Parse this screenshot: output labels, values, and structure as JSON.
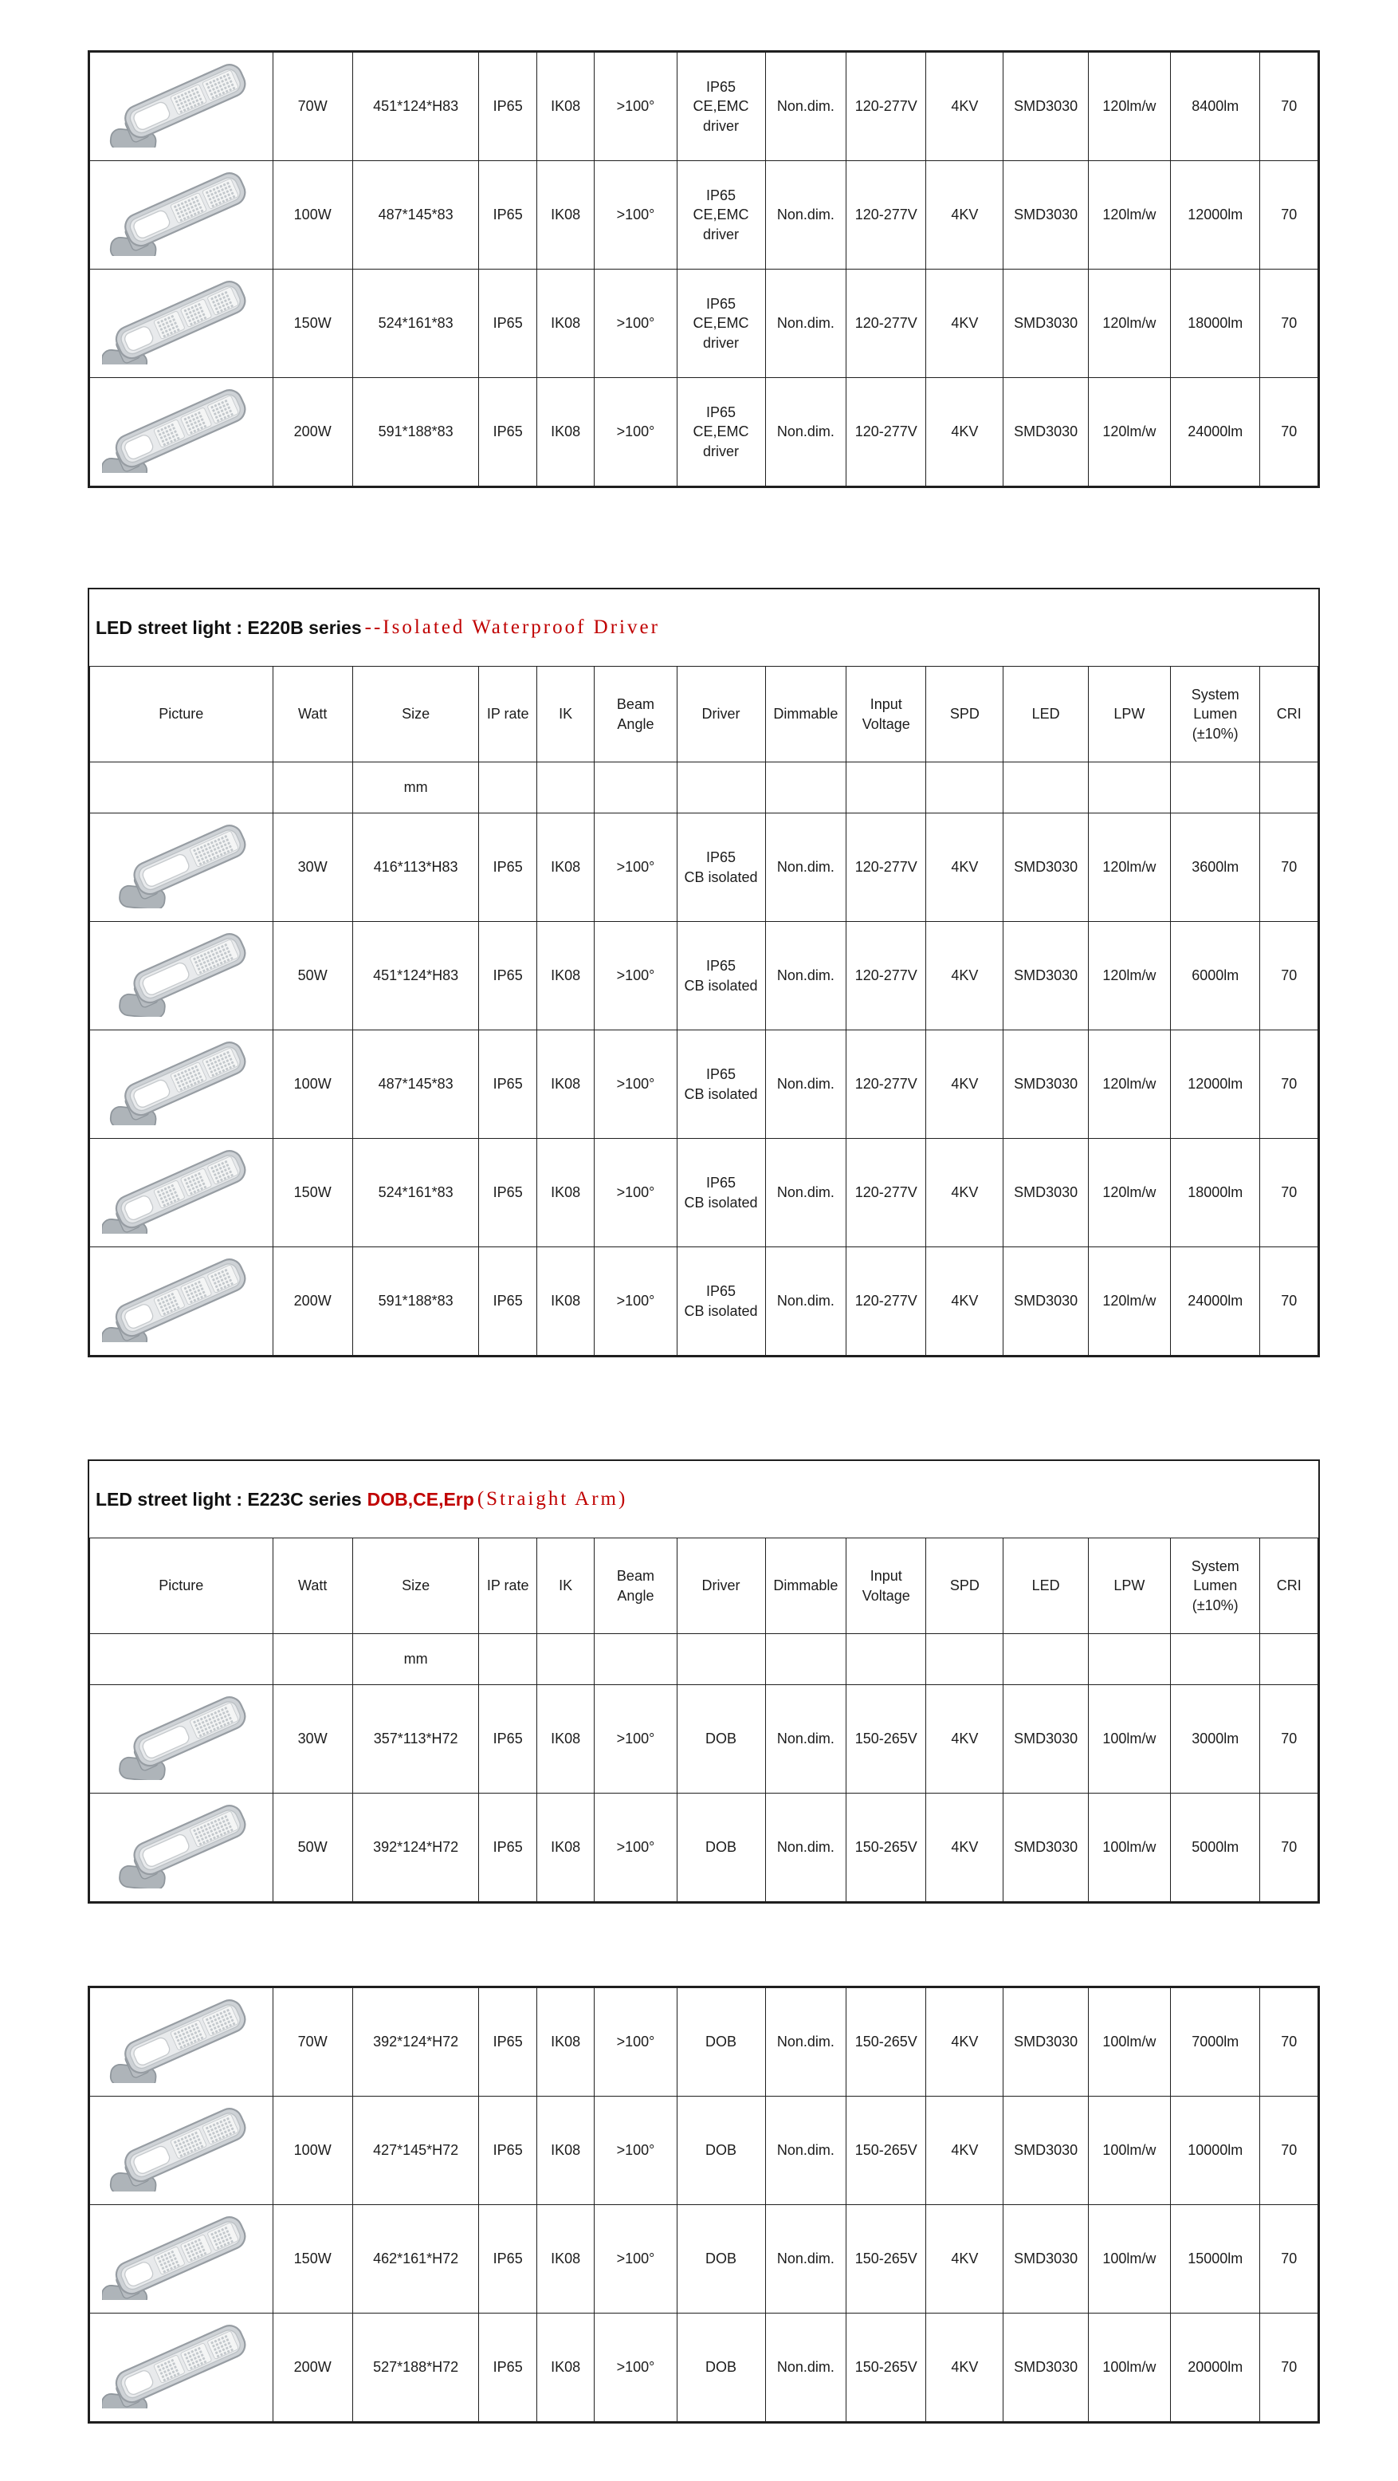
{
  "page": {
    "background": "#ffffff"
  },
  "colors": {
    "border": "#1f1f1f",
    "title_black": "#111111",
    "title_red": "#c00000",
    "lamp_body": "#ced2d6",
    "lamp_outline": "#979da3"
  },
  "unit_label": "mm",
  "columns": [
    "Picture",
    "Watt",
    "Size",
    "IP rate",
    "IK",
    "Beam Angle",
    "Driver",
    "Dimmable",
    "Input Voltage",
    "SPD",
    "LED",
    "LPW",
    "System Lumen (±10%)",
    "CRI"
  ],
  "tables": [
    {
      "has_header": false,
      "rows": [
        {
          "panels": 2,
          "watt": "70W",
          "size": "451*124*H83",
          "ip_rate": "IP65",
          "ik": "IK08",
          "beam_angle": ">100°",
          "driver": [
            "IP65",
            "CE,EMC driver"
          ],
          "dimmable": "Non.dim.",
          "input_voltage": "120-277V",
          "spd": "4KV",
          "led": "SMD3030",
          "lpw": "120lm/w",
          "system_lumen": "8400lm",
          "cri": "70"
        },
        {
          "panels": 2,
          "watt": "100W",
          "size": "487*145*83",
          "ip_rate": "IP65",
          "ik": "IK08",
          "beam_angle": ">100°",
          "driver": [
            "IP65",
            "CE,EMC driver"
          ],
          "dimmable": "Non.dim.",
          "input_voltage": "120-277V",
          "spd": "4KV",
          "led": "SMD3030",
          "lpw": "120lm/w",
          "system_lumen": "12000lm",
          "cri": "70"
        },
        {
          "panels": 3,
          "watt": "150W",
          "size": "524*161*83",
          "ip_rate": "IP65",
          "ik": "IK08",
          "beam_angle": ">100°",
          "driver": [
            "IP65",
            "CE,EMC driver"
          ],
          "dimmable": "Non.dim.",
          "input_voltage": "120-277V",
          "spd": "4KV",
          "led": "SMD3030",
          "lpw": "120lm/w",
          "system_lumen": "18000lm",
          "cri": "70"
        },
        {
          "panels": 3,
          "watt": "200W",
          "size": "591*188*83",
          "ip_rate": "IP65",
          "ik": "IK08",
          "beam_angle": ">100°",
          "driver": [
            "IP65",
            "CE,EMC driver"
          ],
          "dimmable": "Non.dim.",
          "input_voltage": "120-277V",
          "spd": "4KV",
          "led": "SMD3030",
          "lpw": "120lm/w",
          "system_lumen": "24000lm",
          "cri": "70"
        }
      ]
    },
    {
      "has_header": true,
      "title": {
        "black": "LED street light : E220B series",
        "red_serif": "--Isolated Waterproof Driver"
      },
      "rows": [
        {
          "panels": 1,
          "watt": "30W",
          "size": "416*113*H83",
          "ip_rate": "IP65",
          "ik": "IK08",
          "beam_angle": ">100°",
          "driver": [
            "IP65",
            "CB isolated"
          ],
          "dimmable": "Non.dim.",
          "input_voltage": "120-277V",
          "spd": "4KV",
          "led": "SMD3030",
          "lpw": "120lm/w",
          "system_lumen": "3600lm",
          "cri": "70"
        },
        {
          "panels": 1,
          "watt": "50W",
          "size": "451*124*H83",
          "ip_rate": "IP65",
          "ik": "IK08",
          "beam_angle": ">100°",
          "driver": [
            "IP65",
            "CB isolated"
          ],
          "dimmable": "Non.dim.",
          "input_voltage": "120-277V",
          "spd": "4KV",
          "led": "SMD3030",
          "lpw": "120lm/w",
          "system_lumen": "6000lm",
          "cri": "70"
        },
        {
          "panels": 2,
          "watt": "100W",
          "size": "487*145*83",
          "ip_rate": "IP65",
          "ik": "IK08",
          "beam_angle": ">100°",
          "driver": [
            "IP65",
            "CB isolated"
          ],
          "dimmable": "Non.dim.",
          "input_voltage": "120-277V",
          "spd": "4KV",
          "led": "SMD3030",
          "lpw": "120lm/w",
          "system_lumen": "12000lm",
          "cri": "70"
        },
        {
          "panels": 3,
          "watt": "150W",
          "size": "524*161*83",
          "ip_rate": "IP65",
          "ik": "IK08",
          "beam_angle": ">100°",
          "driver": [
            "IP65",
            "CB isolated"
          ],
          "dimmable": "Non.dim.",
          "input_voltage": "120-277V",
          "spd": "4KV",
          "led": "SMD3030",
          "lpw": "120lm/w",
          "system_lumen": "18000lm",
          "cri": "70"
        },
        {
          "panels": 3,
          "watt": "200W",
          "size": "591*188*83",
          "ip_rate": "IP65",
          "ik": "IK08",
          "beam_angle": ">100°",
          "driver": [
            "IP65",
            "CB isolated"
          ],
          "dimmable": "Non.dim.",
          "input_voltage": "120-277V",
          "spd": "4KV",
          "led": "SMD3030",
          "lpw": "120lm/w",
          "system_lumen": "24000lm",
          "cri": "70"
        }
      ]
    },
    {
      "has_header": true,
      "title": {
        "black": "LED street light : E223C series",
        "red_bold": "DOB,CE,Erp",
        "red_serif": "(Straight Arm)"
      },
      "rows": [
        {
          "panels": 1,
          "watt": "30W",
          "size": "357*113*H72",
          "ip_rate": "IP65",
          "ik": "IK08",
          "beam_angle": ">100°",
          "driver": [
            "DOB"
          ],
          "dimmable": "Non.dim.",
          "input_voltage": "150-265V",
          "spd": "4KV",
          "led": "SMD3030",
          "lpw": "100lm/w",
          "system_lumen": "3000lm",
          "cri": "70"
        },
        {
          "panels": 1,
          "watt": "50W",
          "size": "392*124*H72",
          "ip_rate": "IP65",
          "ik": "IK08",
          "beam_angle": ">100°",
          "driver": [
            "DOB"
          ],
          "dimmable": "Non.dim.",
          "input_voltage": "150-265V",
          "spd": "4KV",
          "led": "SMD3030",
          "lpw": "100lm/w",
          "system_lumen": "5000lm",
          "cri": "70"
        }
      ]
    },
    {
      "has_header": false,
      "rows": [
        {
          "panels": 2,
          "watt": "70W",
          "size": "392*124*H72",
          "ip_rate": "IP65",
          "ik": "IK08",
          "beam_angle": ">100°",
          "driver": [
            "DOB"
          ],
          "dimmable": "Non.dim.",
          "input_voltage": "150-265V",
          "spd": "4KV",
          "led": "SMD3030",
          "lpw": "100lm/w",
          "system_lumen": "7000lm",
          "cri": "70"
        },
        {
          "panels": 2,
          "watt": "100W",
          "size": "427*145*H72",
          "ip_rate": "IP65",
          "ik": "IK08",
          "beam_angle": ">100°",
          "driver": [
            "DOB"
          ],
          "dimmable": "Non.dim.",
          "input_voltage": "150-265V",
          "spd": "4KV",
          "led": "SMD3030",
          "lpw": "100lm/w",
          "system_lumen": "10000lm",
          "cri": "70"
        },
        {
          "panels": 3,
          "watt": "150W",
          "size": "462*161*H72",
          "ip_rate": "IP65",
          "ik": "IK08",
          "beam_angle": ">100°",
          "driver": [
            "DOB"
          ],
          "dimmable": "Non.dim.",
          "input_voltage": "150-265V",
          "spd": "4KV",
          "led": "SMD3030",
          "lpw": "100lm/w",
          "system_lumen": "15000lm",
          "cri": "70"
        },
        {
          "panels": 3,
          "watt": "200W",
          "size": "527*188*H72",
          "ip_rate": "IP65",
          "ik": "IK08",
          "beam_angle": ">100°",
          "driver": [
            "DOB"
          ],
          "dimmable": "Non.dim.",
          "input_voltage": "150-265V",
          "spd": "4KV",
          "led": "SMD3030",
          "lpw": "100lm/w",
          "system_lumen": "20000lm",
          "cri": "70"
        }
      ]
    }
  ]
}
